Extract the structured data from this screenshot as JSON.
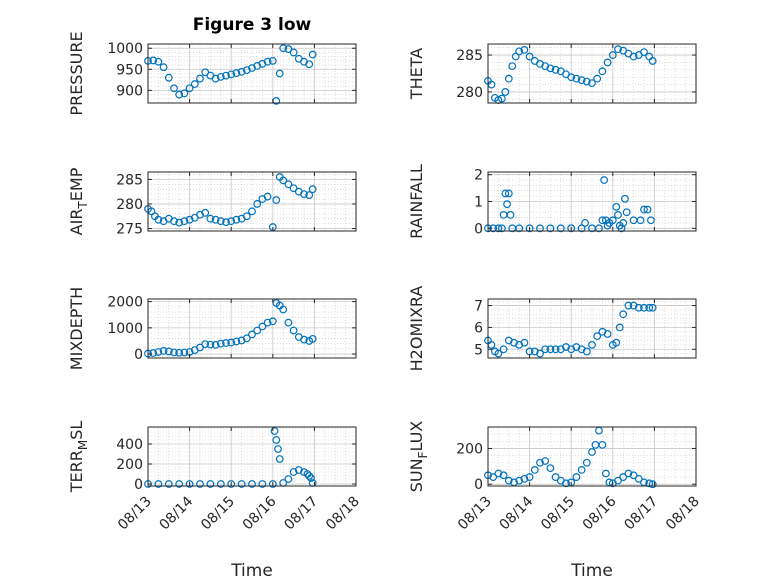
{
  "title": "Figure 3 low",
  "colors": {
    "marker": "#0072BD",
    "axis": "#262626",
    "grid": "#c8c8c8",
    "background": "#ffffff"
  },
  "chart_data": [
    {
      "type": "scatter",
      "title": "Figure 3 low",
      "ylabel": "PRESSURE",
      "xlabel": "",
      "xlim": [
        "08/13",
        "08/18"
      ],
      "ylim": [
        870,
        1010
      ],
      "yticks": [
        "900",
        "950",
        "1000"
      ],
      "xticks": [],
      "grid": true,
      "x": [
        "08/13 00:00",
        "08/13 03:00",
        "08/13 06:00",
        "08/13 09:00",
        "08/13 12:00",
        "08/13 15:00",
        "08/13 18:00",
        "08/13 21:00",
        "08/14 00:00",
        "08/14 03:00",
        "08/14 06:00",
        "08/14 09:00",
        "08/14 12:00",
        "08/14 15:00",
        "08/14 18:00",
        "08/14 21:00",
        "08/15 00:00",
        "08/15 03:00",
        "08/15 06:00",
        "08/15 09:00",
        "08/15 12:00",
        "08/15 15:00",
        "08/15 18:00",
        "08/15 21:00",
        "08/16 00:00",
        "08/16 02:00",
        "08/16 04:00",
        "08/16 06:00",
        "08/16 09:00",
        "08/16 12:00",
        "08/16 15:00",
        "08/16 18:00",
        "08/16 21:00",
        "08/16 23:00"
      ],
      "values": [
        970,
        971,
        968,
        955,
        930,
        905,
        890,
        893,
        905,
        915,
        928,
        943,
        935,
        928,
        932,
        935,
        938,
        941,
        944,
        948,
        953,
        958,
        963,
        968,
        970,
        875,
        940,
        1000,
        998,
        990,
        975,
        968,
        962,
        985
      ]
    },
    {
      "type": "scatter",
      "ylabel": "THETA",
      "xlabel": "",
      "xlim": [
        "08/13",
        "08/18"
      ],
      "ylim": [
        278.5,
        286.5
      ],
      "yticks": [
        "280",
        "285"
      ],
      "xticks": [],
      "grid": true,
      "x": [
        "08/13 00:00",
        "08/13 02:00",
        "08/13 04:00",
        "08/13 06:00",
        "08/13 08:00",
        "08/13 10:00",
        "08/13 12:00",
        "08/13 14:00",
        "08/13 16:00",
        "08/13 18:00",
        "08/13 21:00",
        "08/14 00:00",
        "08/14 03:00",
        "08/14 06:00",
        "08/14 09:00",
        "08/14 12:00",
        "08/14 15:00",
        "08/14 18:00",
        "08/14 21:00",
        "08/15 00:00",
        "08/15 03:00",
        "08/15 06:00",
        "08/15 09:00",
        "08/15 12:00",
        "08/15 15:00",
        "08/15 18:00",
        "08/15 21:00",
        "08/16 00:00",
        "08/16 03:00",
        "08/16 06:00",
        "08/16 09:00",
        "08/16 12:00",
        "08/16 15:00",
        "08/16 18:00",
        "08/16 21:00",
        "08/16 23:00"
      ],
      "values": [
        281.5,
        281,
        279.2,
        278.9,
        279.1,
        280,
        281.8,
        283.5,
        284.8,
        285.5,
        285.7,
        284.8,
        284.2,
        283.8,
        283.5,
        283.2,
        283,
        282.8,
        282.4,
        282,
        281.8,
        281.6,
        281.4,
        281.2,
        281.8,
        282.8,
        284,
        285,
        285.8,
        285.6,
        285.2,
        284.8,
        285,
        285.4,
        284.8,
        284.2
      ]
    },
    {
      "type": "scatter",
      "ylabel": "AIR_TEMP",
      "ylabel_main": "AIR",
      "ylabel_sub": "T",
      "ylabel_rest": "EMP",
      "xlabel": "",
      "xlim": [
        "08/13",
        "08/18"
      ],
      "ylim": [
        274.5,
        286.5
      ],
      "yticks": [
        "275",
        "280",
        "285"
      ],
      "xticks": [],
      "grid": true,
      "x": [
        "08/13 00:00",
        "08/13 02:00",
        "08/13 04:00",
        "08/13 06:00",
        "08/13 09:00",
        "08/13 12:00",
        "08/13 15:00",
        "08/13 18:00",
        "08/13 21:00",
        "08/14 00:00",
        "08/14 03:00",
        "08/14 06:00",
        "08/14 09:00",
        "08/14 12:00",
        "08/14 15:00",
        "08/14 18:00",
        "08/14 21:00",
        "08/15 00:00",
        "08/15 03:00",
        "08/15 06:00",
        "08/15 09:00",
        "08/15 12:00",
        "08/15 15:00",
        "08/15 18:00",
        "08/15 21:00",
        "08/16 00:00",
        "08/16 02:00",
        "08/16 04:00",
        "08/16 06:00",
        "08/16 09:00",
        "08/16 12:00",
        "08/16 15:00",
        "08/16 18:00",
        "08/16 21:00",
        "08/16 23:00"
      ],
      "values": [
        279,
        278.5,
        277.5,
        276.8,
        276.5,
        277,
        276.5,
        276.2,
        276.5,
        276.8,
        277.2,
        277.8,
        278.2,
        277,
        276.8,
        276.5,
        276.3,
        276.5,
        276.8,
        277,
        277.5,
        278.5,
        280,
        281,
        281.5,
        275.3,
        280.8,
        285.5,
        284.8,
        284,
        283.2,
        282.5,
        282,
        281.8,
        283
      ]
    },
    {
      "type": "scatter",
      "ylabel": "RAINFALL",
      "xlabel": "",
      "xlim": [
        "08/13",
        "08/18"
      ],
      "ylim": [
        -0.1,
        2.1
      ],
      "yticks": [
        "0",
        "1",
        "2"
      ],
      "xticks": [],
      "grid": true,
      "x": [
        "08/13 00:00",
        "08/13 03:00",
        "08/13 06:00",
        "08/13 08:00",
        "08/13 09:00",
        "08/13 10:00",
        "08/13 11:00",
        "08/13 12:00",
        "08/13 13:00",
        "08/13 14:00",
        "08/13 18:00",
        "08/14 00:00",
        "08/14 06:00",
        "08/14 12:00",
        "08/14 18:00",
        "08/15 00:00",
        "08/15 06:00",
        "08/15 08:00",
        "08/15 12:00",
        "08/15 16:00",
        "08/15 18:00",
        "08/15 19:00",
        "08/15 20:00",
        "08/15 21:00",
        "08/15 22:00",
        "08/16 00:00",
        "08/16 02:00",
        "08/16 03:00",
        "08/16 04:00",
        "08/16 05:00",
        "08/16 06:00",
        "08/16 07:00",
        "08/16 08:00",
        "08/16 12:00",
        "08/16 16:00",
        "08/16 18:00",
        "08/16 20:00",
        "08/16 22:00"
      ],
      "values": [
        0,
        0,
        0,
        0,
        0.5,
        1.3,
        0.9,
        1.3,
        0.5,
        0,
        0,
        0,
        0,
        0,
        0,
        0,
        0,
        0.2,
        0,
        0,
        0.3,
        1.8,
        0.3,
        0.1,
        0.2,
        0.3,
        0.8,
        0.5,
        0.1,
        0,
        0.2,
        1.1,
        0.6,
        0.3,
        0.3,
        0.7,
        0.7,
        0.3
      ]
    },
    {
      "type": "scatter",
      "ylabel": "MIXDEPTH",
      "xlabel": "",
      "xlim": [
        "08/13",
        "08/18"
      ],
      "ylim": [
        -150,
        2100
      ],
      "yticks": [
        "0",
        "1000",
        "2000"
      ],
      "xticks": [],
      "grid": true,
      "x": [
        "08/13 00:00",
        "08/13 03:00",
        "08/13 06:00",
        "08/13 09:00",
        "08/13 12:00",
        "08/13 15:00",
        "08/13 18:00",
        "08/13 21:00",
        "08/14 00:00",
        "08/14 03:00",
        "08/14 06:00",
        "08/14 09:00",
        "08/14 12:00",
        "08/14 15:00",
        "08/14 18:00",
        "08/14 21:00",
        "08/15 00:00",
        "08/15 03:00",
        "08/15 06:00",
        "08/15 09:00",
        "08/15 12:00",
        "08/15 15:00",
        "08/15 18:00",
        "08/15 21:00",
        "08/16 00:00",
        "08/16 02:00",
        "08/16 04:00",
        "08/16 06:00",
        "08/16 09:00",
        "08/16 12:00",
        "08/16 15:00",
        "08/16 18:00",
        "08/16 21:00",
        "08/16 23:00"
      ],
      "values": [
        20,
        40,
        80,
        120,
        100,
        60,
        50,
        60,
        80,
        150,
        250,
        380,
        360,
        350,
        400,
        420,
        440,
        480,
        520,
        600,
        750,
        900,
        1050,
        1200,
        1250,
        1950,
        1850,
        1700,
        1200,
        900,
        650,
        550,
        500,
        580
      ]
    },
    {
      "type": "scatter",
      "ylabel": "H2OMIXRA",
      "xlabel": "",
      "xlim": [
        "08/13",
        "08/18"
      ],
      "ylim": [
        4.6,
        7.3
      ],
      "yticks": [
        "5",
        "6",
        "7"
      ],
      "xticks": [],
      "grid": true,
      "x": [
        "08/13 00:00",
        "08/13 02:00",
        "08/13 04:00",
        "08/13 06:00",
        "08/13 09:00",
        "08/13 12:00",
        "08/13 15:00",
        "08/13 18:00",
        "08/13 21:00",
        "08/14 00:00",
        "08/14 03:00",
        "08/14 06:00",
        "08/14 09:00",
        "08/14 12:00",
        "08/14 15:00",
        "08/14 18:00",
        "08/14 21:00",
        "08/15 00:00",
        "08/15 03:00",
        "08/15 06:00",
        "08/15 09:00",
        "08/15 12:00",
        "08/15 15:00",
        "08/15 18:00",
        "08/15 21:00",
        "08/16 00:00",
        "08/16 02:00",
        "08/16 04:00",
        "08/16 06:00",
        "08/16 09:00",
        "08/16 12:00",
        "08/16 15:00",
        "08/16 18:00",
        "08/16 21:00",
        "08/16 23:00"
      ],
      "values": [
        5.4,
        5.2,
        4.9,
        4.8,
        5.0,
        5.4,
        5.3,
        5.2,
        5.3,
        4.9,
        4.9,
        4.8,
        5.0,
        5.0,
        5.0,
        5.0,
        5.1,
        5.0,
        5.1,
        5.0,
        4.9,
        5.2,
        5.6,
        5.8,
        5.7,
        5.2,
        5.3,
        6.0,
        6.6,
        7.0,
        7.0,
        6.9,
        6.9,
        6.9,
        6.9
      ]
    },
    {
      "type": "scatter",
      "ylabel": "TERR_MSL",
      "ylabel_main": "TERR",
      "ylabel_sub": "M",
      "ylabel_rest": "SL",
      "xlabel": "Time",
      "xlim": [
        "08/13",
        "08/18"
      ],
      "ylim": [
        -20,
        570
      ],
      "yticks": [
        "0",
        "200",
        "400"
      ],
      "xticks": [
        "08/13",
        "08/14",
        "08/15",
        "08/16",
        "08/17",
        "08/18"
      ],
      "grid": true,
      "x": [
        "08/13 00:00",
        "08/13 06:00",
        "08/13 12:00",
        "08/13 18:00",
        "08/14 00:00",
        "08/14 06:00",
        "08/14 12:00",
        "08/14 18:00",
        "08/15 00:00",
        "08/15 06:00",
        "08/15 12:00",
        "08/15 18:00",
        "08/16 00:00",
        "08/16 01:00",
        "08/16 02:00",
        "08/16 03:00",
        "08/16 04:00",
        "08/16 06:00",
        "08/16 09:00",
        "08/16 12:00",
        "08/16 15:00",
        "08/16 18:00",
        "08/16 20:00",
        "08/16 21:00",
        "08/16 22:00",
        "08/16 23:00"
      ],
      "values": [
        0,
        0,
        0,
        0,
        0,
        0,
        0,
        0,
        0,
        0,
        0,
        0,
        0,
        530,
        440,
        350,
        250,
        10,
        50,
        120,
        140,
        120,
        100,
        80,
        60,
        10
      ]
    },
    {
      "type": "scatter",
      "ylabel": "SUN_FLUX",
      "ylabel_main": "SUN",
      "ylabel_sub": "F",
      "ylabel_rest": "LUX",
      "xlabel": "Time",
      "xlim": [
        "08/13",
        "08/18"
      ],
      "ylim": [
        -10,
        320
      ],
      "yticks": [
        "0",
        "200"
      ],
      "xticks": [
        "08/13",
        "08/14",
        "08/15",
        "08/16",
        "08/17",
        "08/18"
      ],
      "grid": true,
      "x": [
        "08/13 00:00",
        "08/13 03:00",
        "08/13 06:00",
        "08/13 09:00",
        "08/13 12:00",
        "08/13 15:00",
        "08/13 18:00",
        "08/13 21:00",
        "08/14 00:00",
        "08/14 03:00",
        "08/14 06:00",
        "08/14 09:00",
        "08/14 12:00",
        "08/14 15:00",
        "08/14 18:00",
        "08/14 21:00",
        "08/15 00:00",
        "08/15 03:00",
        "08/15 06:00",
        "08/15 09:00",
        "08/15 12:00",
        "08/15 14:00",
        "08/15 16:00",
        "08/15 18:00",
        "08/15 20:00",
        "08/15 22:00",
        "08/16 00:00",
        "08/16 03:00",
        "08/16 06:00",
        "08/16 09:00",
        "08/16 12:00",
        "08/16 15:00",
        "08/16 18:00",
        "08/16 21:00",
        "08/16 23:00"
      ],
      "values": [
        50,
        40,
        60,
        50,
        20,
        10,
        20,
        30,
        40,
        80,
        120,
        130,
        90,
        40,
        20,
        5,
        10,
        40,
        80,
        120,
        180,
        220,
        300,
        220,
        60,
        10,
        5,
        20,
        40,
        60,
        50,
        30,
        10,
        5,
        0
      ]
    }
  ]
}
